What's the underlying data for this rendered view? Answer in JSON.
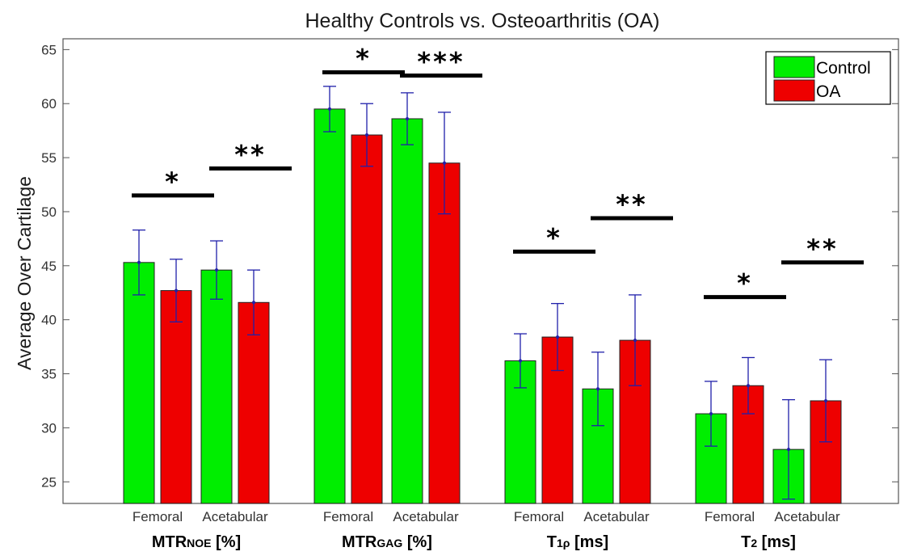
{
  "chart_data": {
    "type": "bar",
    "title": "Healthy Controls vs. Osteoarthritis (OA)",
    "ylabel": "Average Over Cartilage",
    "xlabel": "",
    "ylim": [
      23,
      66
    ],
    "yticks": [
      25,
      30,
      35,
      40,
      45,
      50,
      55,
      60,
      65
    ],
    "subcategories": [
      "Femoral",
      "Acetabular"
    ],
    "groups": [
      {
        "main": "MTR",
        "sub": "NOE",
        "unit": " [%]"
      },
      {
        "main": "MTR",
        "sub": "GAG",
        "unit": " [%]"
      },
      {
        "main": "T",
        "sub": "1ρ",
        "unit": " [ms]"
      },
      {
        "main": "T",
        "sub": "2",
        "unit": " [ms]"
      }
    ],
    "series": [
      {
        "name": "Control",
        "color": "#00ee00",
        "values": [
          45.3,
          44.6,
          59.5,
          58.6,
          36.2,
          33.6,
          31.3,
          28.0
        ],
        "errors": [
          3.0,
          2.7,
          2.1,
          2.4,
          2.5,
          3.4,
          3.0,
          4.6
        ]
      },
      {
        "name": "OA",
        "color": "#ee0000",
        "values": [
          42.7,
          41.6,
          57.1,
          54.5,
          38.4,
          38.1,
          33.9,
          32.5
        ],
        "errors": [
          2.9,
          3.0,
          2.9,
          4.7,
          3.1,
          4.2,
          2.6,
          3.8
        ]
      }
    ],
    "errorbar_color": "#2020aa",
    "significance": [
      {
        "group": 0,
        "sub": 0,
        "label": "*",
        "y": 51.5
      },
      {
        "group": 0,
        "sub": 1,
        "label": "**",
        "y": 54.0
      },
      {
        "group": 1,
        "sub": 0,
        "label": "*",
        "y": 62.9
      },
      {
        "group": 1,
        "sub": 1,
        "label": "***",
        "y": 62.6
      },
      {
        "group": 2,
        "sub": 0,
        "label": "*",
        "y": 46.3
      },
      {
        "group": 2,
        "sub": 1,
        "label": "**",
        "y": 49.4
      },
      {
        "group": 3,
        "sub": 0,
        "label": "*",
        "y": 42.1
      },
      {
        "group": 3,
        "sub": 1,
        "label": "**",
        "y": 45.3
      }
    ],
    "legend": {
      "position": "top-right",
      "entries": [
        "Control",
        "OA"
      ]
    },
    "grid": false
  }
}
